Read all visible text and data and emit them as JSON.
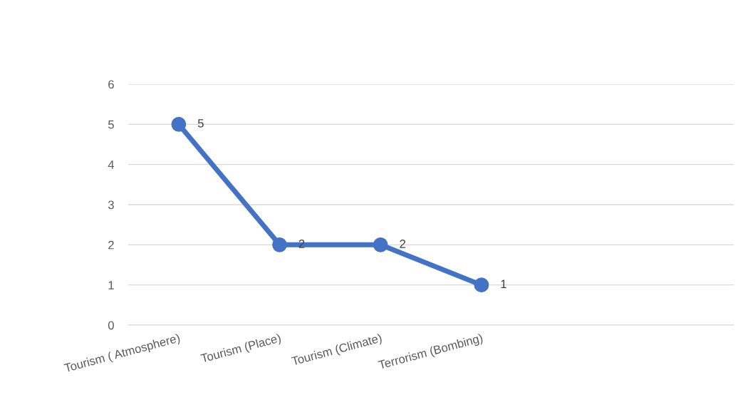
{
  "chart_data": {
    "type": "line",
    "categories": [
      "Tourism ( Atmosphere)",
      "Tourism (Place)",
      "Tourism (Climate)",
      "Terrorism (Bombing)",
      null,
      null
    ],
    "series": [
      {
        "color": "#4472c4",
        "values": [
          5,
          2,
          2,
          1,
          null,
          null
        ]
      }
    ],
    "ylim": [
      0,
      6
    ],
    "yticks": [
      0,
      1,
      2,
      3,
      4,
      5,
      6
    ],
    "grid": "y",
    "marker": "circle",
    "line_style": "solid",
    "data_labels": true
  }
}
